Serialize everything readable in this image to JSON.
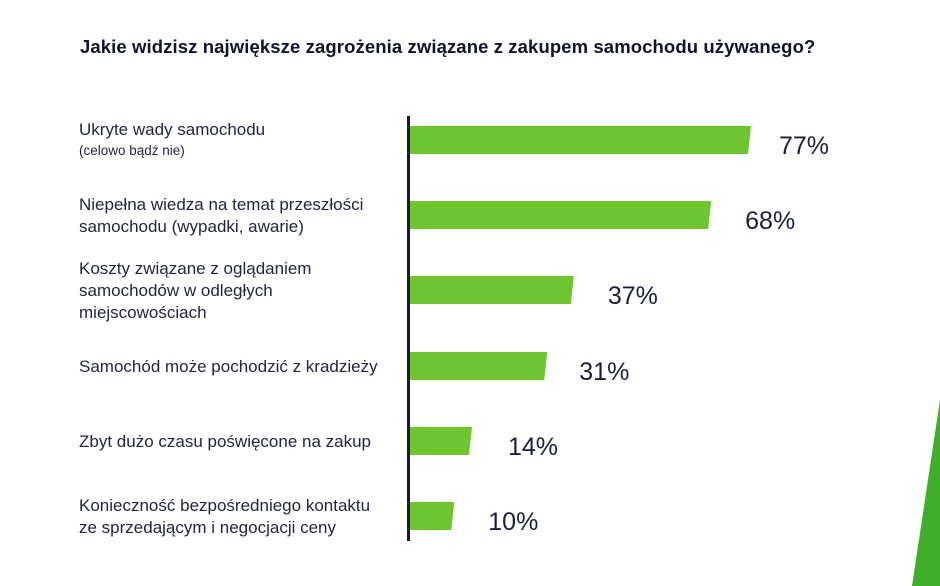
{
  "chart_data": {
    "type": "bar",
    "orientation": "horizontal",
    "title": "Jakie widzisz największe zagrożenia związane z zakupem samochodu używanego?",
    "categories": [
      [
        "Ukryte wady samochodu",
        "(celowo bądź nie)"
      ],
      [
        "Niepełna wiedza na temat przeszłości",
        "samochodu (wypadki, awarie)"
      ],
      [
        "Koszty związane z oglądaniem",
        "samochodów w odległych",
        "miejscowościach"
      ],
      [
        "Samochód może pochodzić z kradzieży"
      ],
      [
        "Zbyt dużo czasu poświęcone na zakup"
      ],
      [
        "Konieczność bezpośredniego kontaktu",
        "ze sprzedającym i negocjacji ceny"
      ]
    ],
    "values": [
      77,
      68,
      37,
      31,
      14,
      10
    ],
    "value_labels": [
      "77%",
      "68%",
      "37%",
      "31%",
      "14%",
      "10%"
    ],
    "unit": "%",
    "bar_color": "#6fc52f",
    "axis_color": "#1a1a2e",
    "accent_color": "#3fae2a",
    "grid": false,
    "legend": false
  }
}
